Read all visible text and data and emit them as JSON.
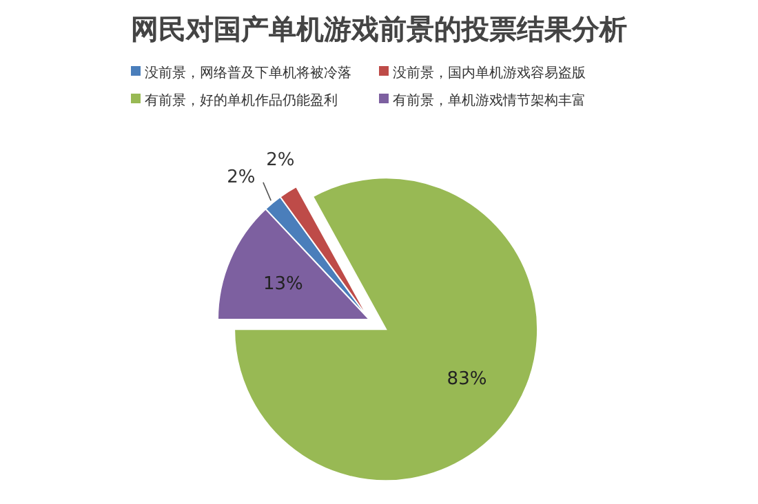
{
  "chart_data": {
    "type": "pie",
    "title": "网民对国产单机游戏前景的投票结果分析",
    "categories": [
      "没前景，网络普及下单机将被冷落",
      "没前景，国内单机游戏容易盗版",
      "有前景，好的单机作品仍能盈利",
      "有前景，单机游戏情节架构丰富"
    ],
    "values": [
      2,
      2,
      83,
      13
    ],
    "colors": [
      "#4a7ebb",
      "#be4b48",
      "#98b954",
      "#7d60a0"
    ],
    "value_labels": [
      "2%",
      "2%",
      "83%",
      "13%"
    ],
    "legend": "top"
  }
}
